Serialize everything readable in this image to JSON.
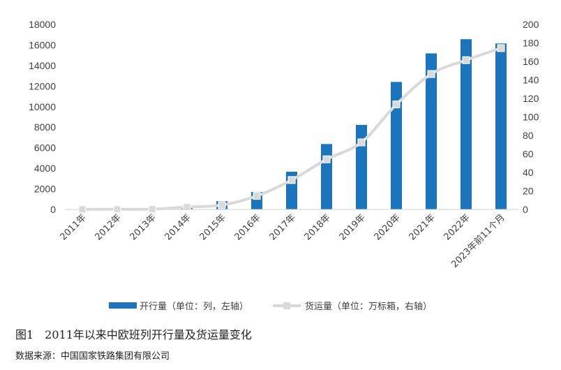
{
  "chart_data": {
    "type": "bar",
    "categories": [
      "2011年",
      "2012年",
      "2013年",
      "2014年",
      "2015年",
      "2016年",
      "2017年",
      "2018年",
      "2019年",
      "2020年",
      "2021年",
      "2022年",
      "2023年前11个月"
    ],
    "series": [
      {
        "name": "开行量（单位：列，左轴）",
        "type": "bar",
        "axis": "left",
        "color": "#1B75BC",
        "values": [
          17,
          42,
          80,
          308,
          815,
          1702,
          3673,
          6363,
          8225,
          12406,
          15183,
          16562,
          16145
        ]
      },
      {
        "name": "货运量（单位：万标箱，右轴）",
        "type": "line",
        "axis": "right",
        "color": "#D9D9D9",
        "values": [
          0.1,
          0.2,
          0.3,
          2.6,
          4.7,
          14.6,
          31.8,
          54.2,
          72.5,
          113.5,
          146.4,
          161.4,
          174.4
        ]
      }
    ],
    "y_left": {
      "ylim": [
        0,
        18000
      ],
      "ticks": [
        "0",
        "2000",
        "4000",
        "6000",
        "8000",
        "10000",
        "12000",
        "14000",
        "16000",
        "18000"
      ]
    },
    "y_right": {
      "ylim": [
        0,
        200
      ],
      "ticks": [
        "0",
        "20",
        "40",
        "60",
        "80",
        "100",
        "120",
        "140",
        "160",
        "180",
        "200"
      ]
    },
    "grid": false,
    "legend_position": "bottom"
  },
  "caption": "图1　2011年以来中欧班列开行量及货运量变化",
  "source": "数据来源：中国国家铁路集团有限公司"
}
